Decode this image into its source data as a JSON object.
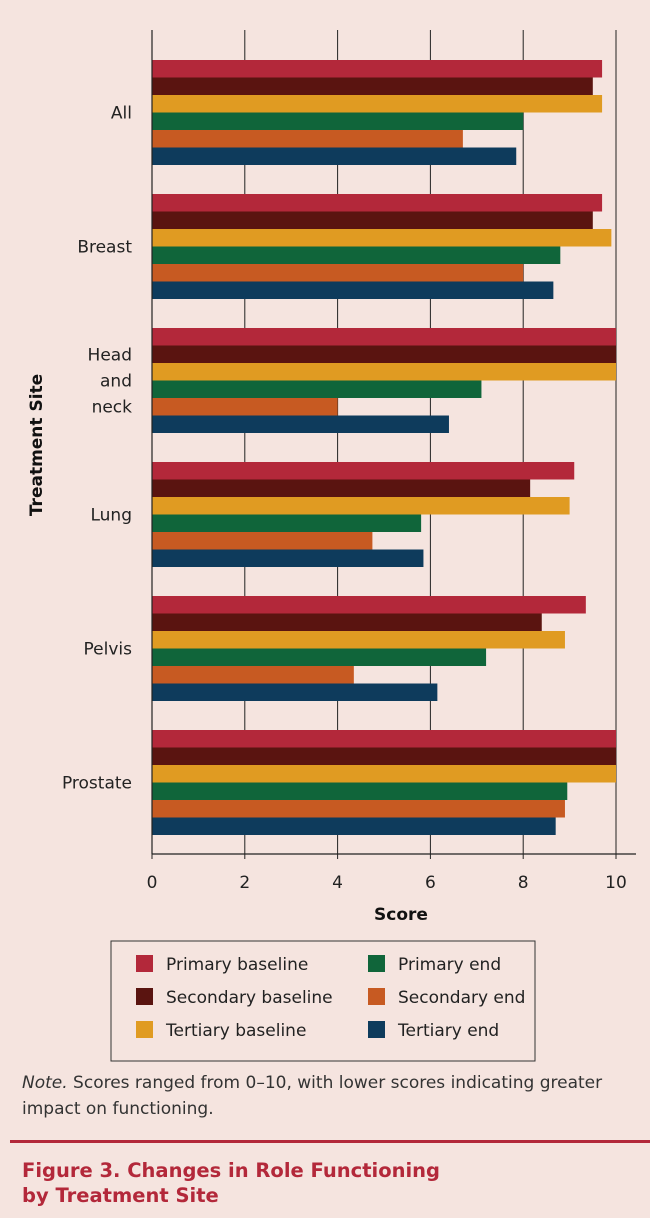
{
  "chart_data": {
    "type": "bar",
    "orientation": "horizontal",
    "categories": [
      "All",
      "Breast",
      "Head and neck",
      "Lung",
      "Pelvis",
      "Prostate"
    ],
    "category_label_lines": [
      [
        "All"
      ],
      [
        "Breast"
      ],
      [
        "Head",
        "and",
        "neck"
      ],
      [
        "Lung"
      ],
      [
        "Pelvis"
      ],
      [
        "Prostate"
      ]
    ],
    "series": [
      {
        "name": "Primary baseline",
        "color": "#b3283a",
        "values": [
          9.7,
          9.7,
          10,
          9.1,
          9.35,
          10
        ]
      },
      {
        "name": "Secondary baseline",
        "color": "#5a1410",
        "values": [
          9.5,
          9.5,
          10,
          8.15,
          8.4,
          10
        ]
      },
      {
        "name": "Tertiary baseline",
        "color": "#e09b22",
        "values": [
          9.7,
          9.9,
          10,
          9.0,
          8.9,
          10
        ]
      },
      {
        "name": "Primary end",
        "color": "#10653a",
        "values": [
          8.0,
          8.8,
          7.1,
          5.8,
          7.2,
          8.95
        ]
      },
      {
        "name": "Secondary end",
        "color": "#c75a22",
        "values": [
          6.7,
          8.0,
          4.0,
          4.75,
          4.35,
          8.9
        ]
      },
      {
        "name": "Tertiary end",
        "color": "#0e3b5c",
        "values": [
          7.85,
          8.65,
          6.4,
          5.85,
          6.15,
          8.7
        ]
      }
    ],
    "xlim": [
      0,
      10
    ],
    "xticks": [
      "0",
      "2",
      "4",
      "6",
      "8",
      "10"
    ],
    "xlabel": "Score",
    "ylabel": "Treatment Site",
    "grid": "vertical",
    "legend_position": "bottom"
  },
  "note": {
    "lead": "Note.",
    "text": " Scores ranged from 0–10, with lower scores indicating greater impact on functioning."
  },
  "caption": {
    "line1": "Figure 3. Changes in Role Functioning",
    "line2": "by Treatment Site"
  }
}
